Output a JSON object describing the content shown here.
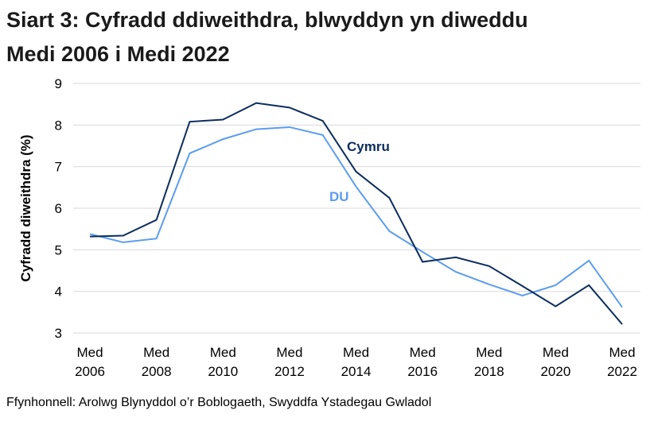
{
  "chart_data": {
    "type": "line",
    "title": "Siart 3: Cyfradd ddiweithdra, blwyddyn yn diweddu Medi 2006 i Medi 2022",
    "ylabel": "Cyfradd diweithdra (%)",
    "xlabel": "",
    "ylim": [
      3,
      9
    ],
    "yticks": [
      "3",
      "4",
      "5",
      "6",
      "7",
      "8",
      "9"
    ],
    "grid": true,
    "x": [
      2006,
      2007,
      2008,
      2009,
      2010,
      2011,
      2012,
      2013,
      2014,
      2015,
      2016,
      2017,
      2018,
      2019,
      2020,
      2021,
      2022
    ],
    "xtick_labels": [
      {
        "line1": "Med",
        "line2": "2006"
      },
      {
        "line1": "Med",
        "line2": "2008"
      },
      {
        "line1": "Med",
        "line2": "2010"
      },
      {
        "line1": "Med",
        "line2": "2012"
      },
      {
        "line1": "Med",
        "line2": "2014"
      },
      {
        "line1": "Med",
        "line2": "2016"
      },
      {
        "line1": "Med",
        "line2": "2018"
      },
      {
        "line1": "Med",
        "line2": "2020"
      },
      {
        "line1": "Med",
        "line2": "2022"
      }
    ],
    "series": [
      {
        "name": "Cymru",
        "color": "#0b2d5e",
        "values": [
          5.32,
          5.34,
          5.72,
          8.08,
          8.13,
          8.53,
          8.42,
          8.1,
          6.88,
          6.25,
          4.71,
          4.82,
          4.61,
          4.13,
          3.64,
          4.15,
          3.21
        ]
      },
      {
        "name": "DU",
        "color": "#5b9cf0",
        "values": [
          5.38,
          5.18,
          5.27,
          7.32,
          7.66,
          7.9,
          7.95,
          7.76,
          6.52,
          5.45,
          4.95,
          4.47,
          4.17,
          3.9,
          4.15,
          4.74,
          3.62
        ]
      }
    ],
    "legend": "inline labels"
  },
  "title_line1": "Siart 3: Cyfradd ddiweithdra, blwyddyn yn diweddu",
  "title_line2": "Medi 2006 i Medi 2022",
  "source": "Ffynhonnell: Arolwg Blynyddol o’r Boblogaeth, Swyddfa Ystadegau Gwladol"
}
